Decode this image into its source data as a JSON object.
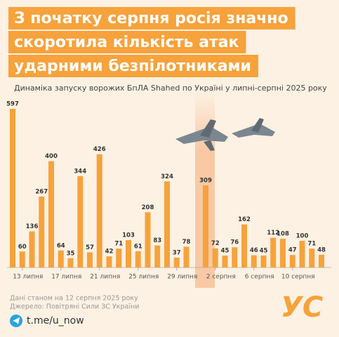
{
  "chart_data": {
    "type": "bar",
    "title": [
      "З початку серпня росія значно",
      "скоротила кількість атак",
      "ударними безпілотниками"
    ],
    "subtitle": "Динаміка запуску ворожих БпЛА Shahed по Україні у липні-серпні 2025 року",
    "categories": [
      null,
      "13 липня",
      null,
      null,
      null,
      "17 липня",
      null,
      null,
      null,
      "21 липня",
      null,
      null,
      null,
      "25 липня",
      null,
      null,
      null,
      "29 липня",
      null,
      null,
      null,
      "2 серпня",
      null,
      null,
      null,
      "6 серпня",
      null,
      null,
      null,
      "10 серпня",
      null,
      null,
      null
    ],
    "values": [
      597,
      60,
      136,
      267,
      400,
      64,
      35,
      344,
      57,
      426,
      42,
      71,
      103,
      61,
      208,
      83,
      324,
      37,
      78,
      null,
      309,
      72,
      45,
      76,
      162,
      46,
      45,
      112,
      108,
      47,
      100,
      71,
      48
    ],
    "color": "#f7a23b",
    "notes": [
      "Дані станом на 12 серпня 2025 року",
      "Джерело: Повітряні Сили ЗС України"
    ],
    "link": "t.me/u_now",
    "logo": "УС"
  }
}
